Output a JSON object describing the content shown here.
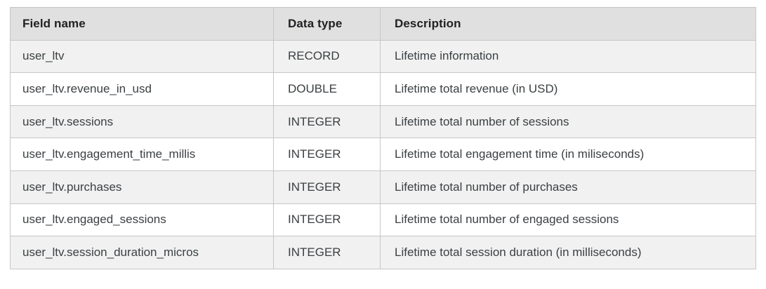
{
  "table": {
    "columns": {
      "field": "Field name",
      "type": "Data type",
      "description": "Description"
    },
    "rows": [
      {
        "field": "user_ltv",
        "type": "RECORD",
        "description": "Lifetime information"
      },
      {
        "field": "user_ltv.revenue_in_usd",
        "type": "DOUBLE",
        "description": "Lifetime total revenue (in USD)"
      },
      {
        "field": "user_ltv.sessions",
        "type": "INTEGER",
        "description": "Lifetime total number of sessions"
      },
      {
        "field": "user_ltv.engagement_time_millis",
        "type": "INTEGER",
        "description": "Lifetime total engagement time (in miliseconds)"
      },
      {
        "field": "user_ltv.purchases",
        "type": "INTEGER",
        "description": "Lifetime total number of purchases"
      },
      {
        "field": "user_ltv.engaged_sessions",
        "type": "INTEGER",
        "description": "Lifetime total number of engaged sessions"
      },
      {
        "field": "user_ltv.session_duration_micros",
        "type": "INTEGER",
        "description": "Lifetime total session duration (in milliseconds)"
      }
    ],
    "colors": {
      "header_bg": "#e0e0e0",
      "stripe_bg": "#f1f1f1",
      "row_bg": "#ffffff",
      "border": "#c6c6c6",
      "header_text": "#202124",
      "body_text": "#3c4043"
    }
  }
}
